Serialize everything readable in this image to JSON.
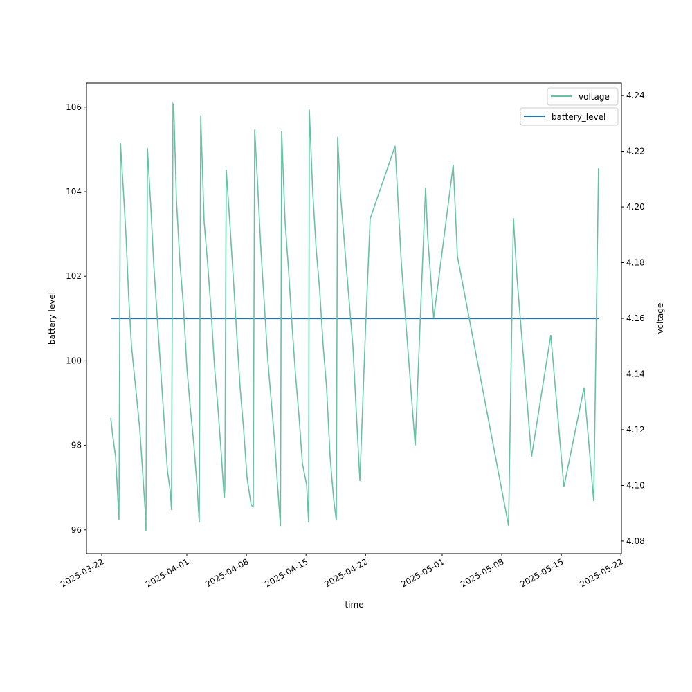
{
  "chart_data": {
    "type": "line",
    "title": "",
    "xlabel": "time",
    "ylabel": "battery level",
    "ylabel_right": "voltage",
    "x_origin": "2025-03-22",
    "x_unit": "days since x_origin",
    "xlim": [
      -1.79,
      61.06
    ],
    "ylim": [
      95.44,
      106.57
    ],
    "ylim_right": [
      4.0755,
      4.2445
    ],
    "x_ticks": [
      {
        "day": 0,
        "label": "2025-03-22"
      },
      {
        "day": 10,
        "label": "2025-04-01"
      },
      {
        "day": 17,
        "label": "2025-04-08"
      },
      {
        "day": 24,
        "label": "2025-04-15"
      },
      {
        "day": 31,
        "label": "2025-04-22"
      },
      {
        "day": 40,
        "label": "2025-05-01"
      },
      {
        "day": 47,
        "label": "2025-05-08"
      },
      {
        "day": 54,
        "label": "2025-05-15"
      },
      {
        "day": 61,
        "label": "2025-05-22"
      }
    ],
    "y_ticks": [
      "96",
      "98",
      "100",
      "102",
      "104",
      "106"
    ],
    "y_ticks_right": [
      "4.08",
      "4.10",
      "4.12",
      "4.14",
      "4.16",
      "4.18",
      "4.20",
      "4.22",
      "4.24"
    ],
    "legend": [
      {
        "label": "battery_level",
        "color": "#1f77b4"
      },
      {
        "label": "voltage",
        "color": "#66c2a5"
      }
    ],
    "legend_placement": "top-right",
    "series": [
      {
        "name": "battery_level",
        "axis": "left",
        "color": "#1f77b4",
        "x": [
          1.06,
          58.4
        ],
        "y": [
          101,
          101
        ]
      },
      {
        "name": "voltage",
        "axis": "right",
        "color": "#66c2a5",
        "x": [
          1.06,
          1.3,
          1.63,
          2.03,
          2.2,
          2.52,
          2.85,
          3.17,
          3.5,
          3.82,
          4.15,
          4.47,
          4.8,
          5.12,
          5.2,
          5.37,
          5.77,
          6.1,
          6.42,
          6.75,
          7.07,
          7.4,
          7.72,
          8.05,
          8.2,
          8.37,
          8.46,
          8.78,
          9.19,
          9.59,
          10,
          10.41,
          10.81,
          11.22,
          11.46,
          11.63,
          12.03,
          12.44,
          12.85,
          13.25,
          13.66,
          14.07,
          14.39,
          14.47,
          14.63,
          15.04,
          15.45,
          15.85,
          16.26,
          16.67,
          17.07,
          17.56,
          17.8,
          17.97,
          18.29,
          18.7,
          19.11,
          19.51,
          19.92,
          20.33,
          20.65,
          21.0,
          21.14,
          21.54,
          21.95,
          22.36,
          22.76,
          23.17,
          23.58,
          24.07,
          24.31,
          24.39,
          24.8,
          25.2,
          25.61,
          26.02,
          26.42,
          26.83,
          27.24,
          27.56,
          27.72,
          28.05,
          28.7,
          29.51,
          30.33,
          30.98,
          31.54,
          34.47,
          35.2,
          36.83,
          38.05,
          38.29,
          39.0,
          41.3,
          41.79,
          47.8,
          48.37,
          48.78,
          50.5,
          52.76,
          54.3,
          56.67,
          57.8,
          58.37
        ],
        "y": [
          4.1242,
          4.1177,
          4.1103,
          4.0875,
          4.2229,
          4.2072,
          4.1898,
          4.1675,
          4.15,
          4.1401,
          4.1302,
          4.1202,
          4.1053,
          4.0904,
          4.0835,
          4.2211,
          4.1998,
          4.18,
          4.165,
          4.15,
          4.1351,
          4.1202,
          4.1053,
          4.098,
          4.0912,
          4.237,
          4.2365,
          4.2022,
          4.1798,
          4.1649,
          4.1425,
          4.1276,
          4.1152,
          4.0991,
          4.0867,
          4.2328,
          4.1948,
          4.1798,
          4.1625,
          4.1426,
          4.1276,
          4.1103,
          4.0954,
          4.0991,
          4.2134,
          4.1948,
          4.1749,
          4.155,
          4.1351,
          4.1202,
          4.1028,
          4.0929,
          4.0924,
          4.2278,
          4.2097,
          4.1848,
          4.1649,
          4.145,
          4.1302,
          4.1152,
          4.1003,
          4.0854,
          4.2271,
          4.1948,
          4.1774,
          4.1575,
          4.14,
          4.1252,
          4.1078,
          4.1003,
          4.0867,
          4.235,
          4.2047,
          4.1848,
          4.1699,
          4.15,
          4.1351,
          4.1103,
          4.0954,
          4.0874,
          4.2251,
          4.2047,
          4.1798,
          4.15,
          4.1016,
          4.155,
          4.1958,
          4.2219,
          4.18,
          4.1143,
          4.207,
          4.1898,
          4.16,
          4.2152,
          4.1823,
          4.0855,
          4.196,
          4.1749,
          4.1103,
          4.154,
          4.0994,
          4.1352,
          4.0944,
          4.2139
        ]
      }
    ]
  }
}
